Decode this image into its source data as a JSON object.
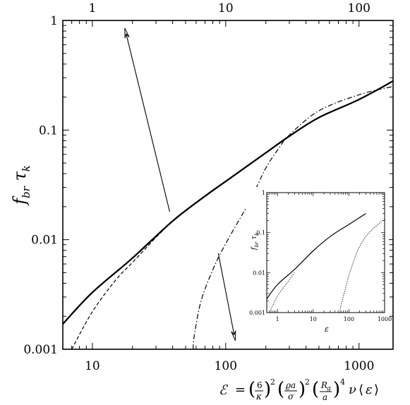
{
  "chart_data": [
    {
      "type": "line",
      "xscale": "log",
      "yscale": "log",
      "xlim": [
        6,
        1800
      ],
      "ylim": [
        0.001,
        1
      ],
      "xlabel": "ℰ = (6/κ)² (ϱa/σ)² (Rg/a)⁴ ν ⟨ε⟩",
      "ylabel": "f_br τ_k",
      "bottom_tick_labels": [
        "10",
        "100",
        "1000"
      ],
      "top_tick_labels": [
        "1",
        "10",
        "100"
      ],
      "y_tick_labels": [
        "0.001",
        "0.01",
        "0.1",
        "1"
      ],
      "series": [
        {
          "style": "solid",
          "x": [
            6,
            10,
            20,
            40,
            70,
            100,
            200,
            300,
            500,
            1000,
            1800
          ],
          "y": [
            0.0017,
            0.0033,
            0.0068,
            0.0148,
            0.025,
            0.034,
            0.062,
            0.088,
            0.13,
            0.19,
            0.28
          ]
        },
        {
          "style": "dashed",
          "x": [
            7,
            10,
            15,
            20,
            30,
            40
          ],
          "y": [
            0.001,
            0.0022,
            0.0043,
            0.0062,
            0.0105,
            0.0148
          ]
        },
        {
          "style": "dash-dot",
          "x": [
            57,
            58,
            65,
            80,
            100,
            150,
            200,
            250,
            300,
            500,
            1000,
            1800
          ],
          "y": [
            0.001,
            0.0013,
            0.0027,
            0.0053,
            0.0092,
            0.022,
            0.045,
            0.068,
            0.09,
            0.15,
            0.21,
            0.25
          ]
        }
      ],
      "annotations": [
        {
          "type": "arrow",
          "from": [
            38,
            0.018
          ],
          "to": [
            17.5,
            0.85
          ]
        },
        {
          "type": "arrow",
          "from": [
            88,
            0.0075
          ],
          "to": [
            118,
            0.0012
          ]
        }
      ]
    },
    {
      "type": "line",
      "inset": true,
      "xscale": "log",
      "yscale": "log",
      "xlim": [
        0.5,
        1000
      ],
      "ylim": [
        0.001,
        1
      ],
      "xlabel": "ε",
      "ylabel": "f_br τ_k",
      "x_tick_labels": [
        "1",
        "10",
        "100",
        "1000"
      ],
      "y_tick_labels": [
        "0.001",
        "0.01",
        "0.1",
        "1"
      ],
      "series": [
        {
          "style": "solid",
          "x": [
            0.5,
            1,
            3,
            10,
            30,
            100,
            300
          ],
          "y": [
            0.0022,
            0.005,
            0.012,
            0.035,
            0.08,
            0.16,
            0.3
          ]
        },
        {
          "style": "dotted",
          "x": [
            0.6,
            1,
            2,
            3
          ],
          "y": [
            0.001,
            0.0026,
            0.006,
            0.01
          ]
        },
        {
          "style": "dotted",
          "x": [
            55,
            60,
            80,
            100,
            150,
            200,
            300,
            500,
            1000
          ],
          "y": [
            0.001,
            0.0015,
            0.004,
            0.0085,
            0.025,
            0.045,
            0.08,
            0.13,
            0.22
          ]
        }
      ]
    }
  ]
}
